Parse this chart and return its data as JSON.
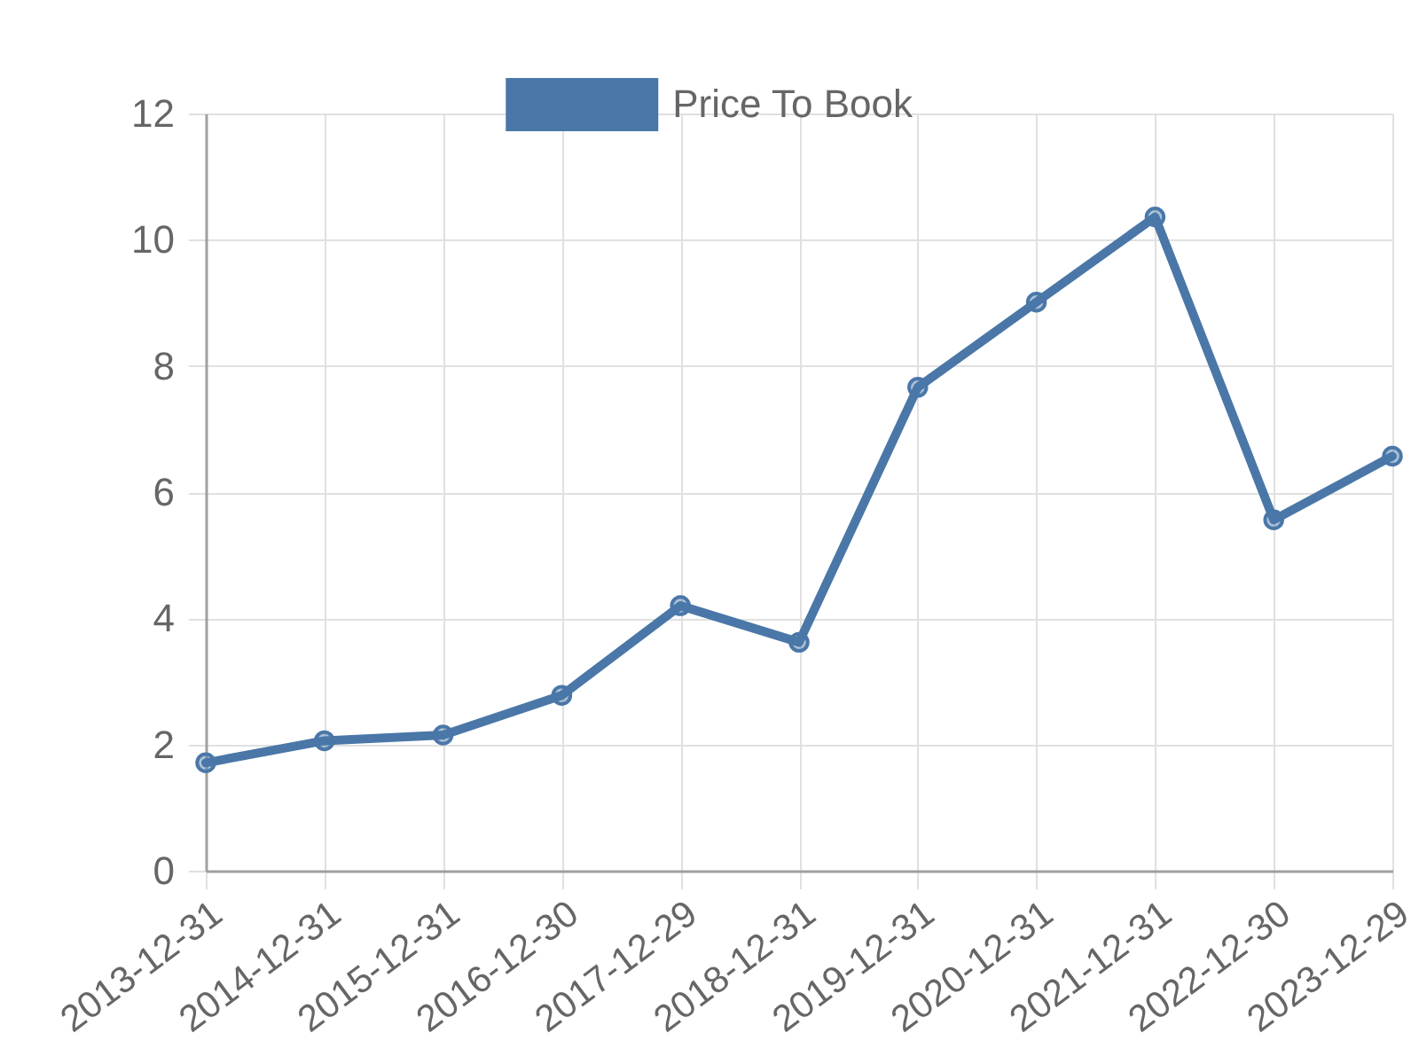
{
  "chart_data": {
    "type": "line",
    "categories": [
      "2013-12-31",
      "2014-12-31",
      "2015-12-31",
      "2016-12-30",
      "2017-12-29",
      "2018-12-31",
      "2019-12-31",
      "2020-12-31",
      "2021-12-31",
      "2022-12-30",
      "2023-12-29"
    ],
    "series": [
      {
        "name": "Price To Book",
        "color": "#4a77a8",
        "values": [
          1.71,
          2.06,
          2.15,
          2.78,
          4.2,
          3.62,
          7.66,
          9.01,
          10.36,
          5.56,
          6.57
        ]
      }
    ],
    "ylim": [
      0,
      12
    ],
    "yticks": [
      0,
      2,
      4,
      6,
      8,
      10,
      12
    ],
    "grid": true,
    "legend": "top",
    "marker": "circle",
    "line_style": "solid"
  }
}
